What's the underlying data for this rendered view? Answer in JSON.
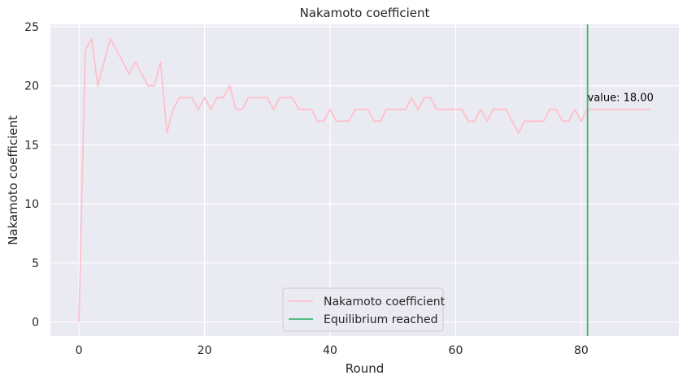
{
  "chart_data": {
    "type": "line",
    "title": "Nakamoto coefficient",
    "xlabel": "Round",
    "ylabel": "Nakamoto coefficient",
    "xlim": [
      -4.55,
      95.55
    ],
    "ylim": [
      -1.2,
      25.2
    ],
    "xticks": [
      0,
      20,
      40,
      60,
      80
    ],
    "yticks": [
      0,
      5,
      10,
      15,
      20,
      25
    ],
    "grid": true,
    "legend_position": "lower center",
    "colors": {
      "background": "#eaeaf2",
      "grid": "#ffffff",
      "series": "#ffc0cb",
      "equilibrium": "#3cb371"
    },
    "series": [
      {
        "name": "Nakamoto coefficient",
        "color": "#ffc0cb",
        "x": [
          0,
          1,
          2,
          3,
          4,
          5,
          6,
          7,
          8,
          9,
          10,
          11,
          12,
          13,
          14,
          15,
          16,
          17,
          18,
          19,
          20,
          21,
          22,
          23,
          24,
          25,
          26,
          27,
          28,
          29,
          30,
          31,
          32,
          33,
          34,
          35,
          36,
          37,
          38,
          39,
          40,
          41,
          42,
          43,
          44,
          45,
          46,
          47,
          48,
          49,
          50,
          51,
          52,
          53,
          54,
          55,
          56,
          57,
          58,
          59,
          60,
          61,
          62,
          63,
          64,
          65,
          66,
          67,
          68,
          69,
          70,
          71,
          72,
          73,
          74,
          75,
          76,
          77,
          78,
          79,
          80,
          81,
          82,
          83,
          84,
          85,
          86,
          87,
          88,
          89,
          90,
          91
        ],
        "y": [
          0,
          23,
          24,
          20,
          22,
          24,
          23,
          22,
          21,
          22,
          21,
          20,
          20,
          22,
          16,
          18,
          19,
          19,
          19,
          18,
          19,
          18,
          19,
          19,
          20,
          18,
          18,
          19,
          19,
          19,
          19,
          18,
          19,
          19,
          19,
          18,
          18,
          18,
          17,
          17,
          18,
          17,
          17,
          17,
          18,
          18,
          18,
          17,
          17,
          18,
          18,
          18,
          18,
          19,
          18,
          19,
          19,
          18,
          18,
          18,
          18,
          18,
          17,
          17,
          18,
          17,
          18,
          18,
          18,
          17,
          16,
          17,
          17,
          17,
          17,
          18,
          18,
          17,
          17,
          18,
          17,
          18,
          18,
          18,
          18,
          18,
          18,
          18,
          18,
          18,
          18,
          18
        ]
      }
    ],
    "equilibrium": {
      "name": "Equilibrium reached",
      "x": 81,
      "color": "#3cb371"
    },
    "annotation": {
      "text": "value: 18.00",
      "x": 81,
      "y": 18.7
    }
  }
}
